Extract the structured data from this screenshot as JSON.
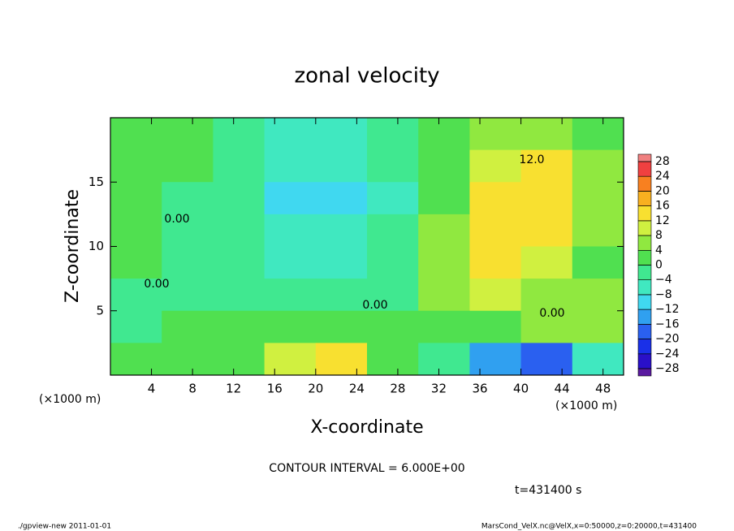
{
  "chart_data": {
    "type": "heatmap",
    "title": "zonal velocity",
    "xlabel": "X-coordinate",
    "ylabel": "Z-coordinate",
    "x_unit_left": "(×1000 m)",
    "x_unit_right": "(×1000 m)",
    "contour_interval": "CONTOUR INTERVAL = 6.000E+00",
    "time_label": "t=431400 s",
    "footer_left": "./gpview-new  2011-01-01",
    "footer_right": "MarsCond_VelX.nc@VelX,x=0:50000,z=0:20000,t=431400",
    "annotations": [
      "0.00",
      "0.00",
      "12.0",
      "0.00",
      "0.00"
    ],
    "xlim": [
      0,
      50
    ],
    "ylim": [
      0,
      20
    ],
    "xticks": [
      4,
      8,
      12,
      16,
      20,
      24,
      28,
      32,
      36,
      40,
      44,
      48
    ],
    "yticks": [
      5,
      10,
      15
    ],
    "x": [
      2.5,
      7.5,
      12.5,
      17.5,
      22.5,
      27.5,
      32.5,
      37.5,
      42.5,
      47.5
    ],
    "y": [
      18.75,
      16.25,
      13.75,
      11.25,
      8.75,
      6.25,
      3.75,
      1.25
    ],
    "z": [
      [
        2,
        0,
        -2,
        -6,
        -7,
        -3,
        3,
        6,
        5,
        3
      ],
      [
        1,
        0,
        -3,
        -8,
        -8,
        -4,
        3,
        8,
        12,
        4
      ],
      [
        1,
        -1,
        -4,
        -10,
        -12,
        -5,
        3,
        12,
        12,
        6
      ],
      [
        1,
        -1,
        -3,
        -8,
        -8,
        -4,
        4,
        13,
        14,
        5
      ],
      [
        0,
        -1,
        -2,
        -6,
        -5,
        -3,
        5,
        12,
        8,
        3
      ],
      [
        -1,
        -2,
        -1,
        -3,
        -2,
        -2,
        5,
        9,
        7,
        4
      ],
      [
        -1,
        0,
        1,
        2,
        3,
        2,
        2,
        3,
        4,
        4
      ],
      [
        1,
        0,
        2,
        8,
        12,
        3,
        -4,
        -14,
        -20,
        -8
      ]
    ],
    "colorbar_ticks": [
      28,
      24,
      20,
      16,
      12,
      8,
      4,
      0,
      {
        "value": -4,
        "label": "−4"
      },
      {
        "value": -8,
        "label": "−8"
      },
      {
        "value": -12,
        "label": "−12"
      },
      {
        "value": -16,
        "label": "−16"
      },
      {
        "value": -20,
        "label": "−20"
      },
      {
        "value": -24,
        "label": "−24"
      },
      {
        "value": -28,
        "label": "−28"
      }
    ],
    "colors": [
      "#5a1aa0",
      "#2a10c8",
      "#1a30e8",
      "#2a60f0",
      "#30a0f0",
      "#40d8f0",
      "#40e8c0",
      "#40e890",
      "#50e050",
      "#90e840",
      "#d0f040",
      "#f8e030",
      "#f8b020",
      "#f88020",
      "#f04040",
      "#f08080"
    ]
  }
}
